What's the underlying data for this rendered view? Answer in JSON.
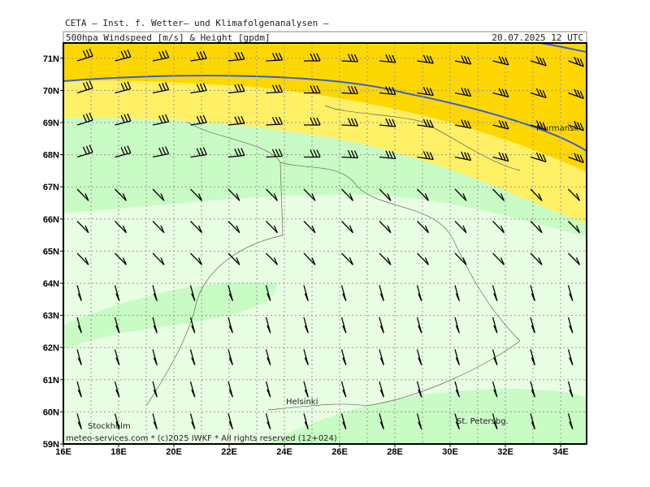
{
  "header": {
    "title": "CETA — Inst. f. Wetter— und Klimafolgenanalysen —",
    "subtitle": "500hpa_Windspeed_[m/s]_&_Height_[gpdm]",
    "valid_time": "20.07.2025 12 UTC"
  },
  "axes": {
    "latitude_labels": [
      "59N",
      "60N",
      "61N",
      "62N",
      "63N",
      "64N",
      "65N",
      "66N",
      "67N",
      "68N",
      "69N",
      "70N",
      "71N"
    ],
    "longitude_labels": [
      "16E",
      "18E",
      "20E",
      "22E",
      "24E",
      "26E",
      "28E",
      "30E",
      "32E",
      "34E"
    ]
  },
  "places": {
    "murmansk": "Murmansk",
    "helsinki": "Helsinki",
    "stockholm": "Stockholm",
    "st_petersburg": "St. Petersbg."
  },
  "footer": "meteo-services.com * (c)2025 IWKF * All rights reserved (12+024)"
}
